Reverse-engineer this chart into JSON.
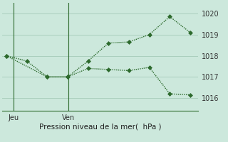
{
  "line1_x": [
    0,
    1,
    2,
    3,
    4,
    5,
    6,
    7,
    8,
    9
  ],
  "line1_y": [
    1018.0,
    1017.75,
    1017.0,
    1017.0,
    1017.75,
    1018.6,
    1018.65,
    1019.0,
    1019.85,
    1019.1
  ],
  "line2_x": [
    0,
    2,
    3,
    4,
    5,
    6,
    7,
    8,
    9
  ],
  "line2_y": [
    1018.0,
    1017.0,
    1017.0,
    1017.4,
    1017.35,
    1017.3,
    1017.45,
    1016.2,
    1016.15
  ],
  "yticks": [
    1016,
    1017,
    1018,
    1019,
    1020
  ],
  "ylim": [
    1015.4,
    1020.5
  ],
  "xlim": [
    -0.2,
    9.4
  ],
  "jeu_x": 0.35,
  "ven_x": 3.05,
  "xlabel": "Pression niveau de la mer(  hPa )",
  "line_color": "#2d6a2d",
  "bg_color": "#cce8dc",
  "grid_color": "#aacfbe",
  "markersize": 3,
  "linewidth": 1.0
}
